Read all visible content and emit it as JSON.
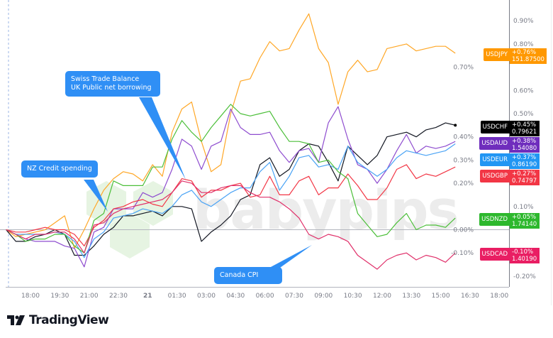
{
  "chart_data": {
    "type": "line",
    "ylim": [
      -0.25,
      0.97
    ],
    "y_unit": "%",
    "y_ticks": [
      "0.90%",
      "0.80%",
      "0.70%",
      "0.60%",
      "0.50%",
      "0.40%",
      "0.30%",
      "0.20%",
      "0.10%",
      "0.00%",
      "-0.10%",
      "-0.20%"
    ],
    "y_tick_values": [
      0.9,
      0.8,
      0.7,
      0.6,
      0.5,
      0.4,
      0.3,
      0.2,
      0.1,
      0.0,
      -0.1,
      -0.2
    ],
    "x_ticks": [
      "18:00",
      "19:30",
      "21:00",
      "22:30",
      "21",
      "01:30",
      "03:00",
      "04:30",
      "06:00",
      "07:30",
      "09:00",
      "10:30",
      "12:00",
      "13:30",
      "15:00",
      "16:30",
      "18:00"
    ],
    "x": [
      "16:45",
      "17:15",
      "17:45",
      "18:15",
      "18:45",
      "19:15",
      "19:45",
      "20:15",
      "20:45",
      "21:15",
      "21:45",
      "22:15",
      "22:45",
      "23:15",
      "23:45",
      "00:15",
      "00:45",
      "01:15",
      "01:45",
      "02:15",
      "02:45",
      "03:15",
      "03:45",
      "04:15",
      "04:45",
      "05:15",
      "05:45",
      "06:15",
      "06:45",
      "07:15",
      "07:45",
      "08:15",
      "08:45",
      "09:15",
      "09:45",
      "10:15",
      "10:45",
      "11:15",
      "11:45",
      "12:15",
      "12:45",
      "13:15",
      "13:45",
      "14:15",
      "14:45",
      "15:15",
      "15:45"
    ],
    "series": [
      {
        "name": "USDJPY",
        "change": "+0.76%",
        "price": "151.87500",
        "color": "#ff9800",
        "line": "#ffa726",
        "values": [
          0,
          -0.03,
          -0.02,
          -0.01,
          0,
          0.03,
          0.06,
          -0.08,
          0,
          0.09,
          0.17,
          0.22,
          0.25,
          0.24,
          0.21,
          0.28,
          0.23,
          0.42,
          0.52,
          0.55,
          0.38,
          0.25,
          0.28,
          0.5,
          0.64,
          0.65,
          0.74,
          0.81,
          0.77,
          0.78,
          0.86,
          0.93,
          0.78,
          0.72,
          0.54,
          0.68,
          0.73,
          0.68,
          0.69,
          0.78,
          0.79,
          0.8,
          0.77,
          0.78,
          0.79,
          0.79,
          0.76
        ]
      },
      {
        "name": "USDCHF",
        "change": "+0.45%",
        "price": "0.79621",
        "color": "#000000",
        "line": "#131722",
        "values": [
          0,
          -0.05,
          -0.05,
          -0.03,
          -0.02,
          0,
          -0.02,
          -0.11,
          -0.11,
          -0.07,
          -0.02,
          0.01,
          0.06,
          0.06,
          0.07,
          0.08,
          0.06,
          0.1,
          0.1,
          0.09,
          -0.05,
          -0.01,
          0.02,
          0.06,
          0.13,
          0.15,
          0.28,
          0.31,
          0.23,
          0.26,
          0.34,
          0.37,
          0.36,
          0.29,
          0.21,
          0.36,
          0.32,
          0.28,
          0.32,
          0.4,
          0.41,
          0.42,
          0.4,
          0.43,
          0.44,
          0.46,
          0.45
        ]
      },
      {
        "name": "USDAUD",
        "change": "+0.38%",
        "price": "1.54080",
        "color": "#6f2dbd",
        "line": "#8e4ccf",
        "values": [
          0,
          -0.02,
          -0.04,
          -0.05,
          -0.05,
          -0.05,
          -0.07,
          -0.08,
          -0.16,
          -0.01,
          0.01,
          0.09,
          0.09,
          0.09,
          0.16,
          0.14,
          0.16,
          0.26,
          0.39,
          0.36,
          0.26,
          0.36,
          0.38,
          0.52,
          0.44,
          0.41,
          0.41,
          0.42,
          0.34,
          0.29,
          0.34,
          0.35,
          0.29,
          0.46,
          0.53,
          0.39,
          0.28,
          0.26,
          0.2,
          0.26,
          0.34,
          0.41,
          0.33,
          0.36,
          0.35,
          0.36,
          0.38
        ]
      },
      {
        "name": "USDEUR",
        "change": "+0.37%",
        "price": "0.86190",
        "color": "#2196f3",
        "line": "#4aa3f5",
        "values": [
          0,
          -0.02,
          -0.02,
          -0.02,
          -0.02,
          -0.01,
          -0.02,
          -0.05,
          -0.12,
          -0.04,
          -0.01,
          0.05,
          0.06,
          0.07,
          0.09,
          0.08,
          0.07,
          0.1,
          0.15,
          0.17,
          0.12,
          0.1,
          0.13,
          0.16,
          0.18,
          0.18,
          0.25,
          0.29,
          0.17,
          0.23,
          0.31,
          0.32,
          0.27,
          0.28,
          0.26,
          0.36,
          0.29,
          0.26,
          0.23,
          0.26,
          0.31,
          0.34,
          0.33,
          0.32,
          0.33,
          0.34,
          0.37
        ]
      },
      {
        "name": "USDGBP",
        "change": "+0.27%",
        "price": "0.74797",
        "color": "#f23645",
        "line": "#f23645",
        "values": [
          0,
          -0.01,
          -0.01,
          0,
          0.01,
          0,
          0,
          -0.02,
          -0.07,
          0.01,
          0.04,
          0.09,
          0.1,
          0.12,
          0.13,
          0.11,
          0.1,
          0.16,
          0.22,
          0.21,
          0.14,
          0.17,
          0.17,
          0.19,
          0.2,
          0.14,
          0.15,
          0.23,
          0.15,
          0.15,
          0.21,
          0.23,
          0.15,
          0.18,
          0.18,
          0.24,
          0.19,
          0.13,
          0.13,
          0.18,
          0.26,
          0.28,
          0.22,
          0.24,
          0.23,
          0.25,
          0.27
        ]
      },
      {
        "name": "USDNZD",
        "change": "+0.05%",
        "price": "1.74140",
        "color": "#2db82d",
        "line": "#4cbf3a",
        "values": [
          0,
          -0.02,
          -0.05,
          -0.04,
          -0.04,
          -0.02,
          -0.02,
          -0.07,
          -0.1,
          0.04,
          0.07,
          0.21,
          0.19,
          0.19,
          0.19,
          0.27,
          0.27,
          0.39,
          0.47,
          0.42,
          0.38,
          0.44,
          0.49,
          0.54,
          0.5,
          0.49,
          0.5,
          0.51,
          0.44,
          0.38,
          0.38,
          0.37,
          0.29,
          0.3,
          0.25,
          0.22,
          0.07,
          0.02,
          -0.03,
          -0.02,
          0.03,
          0.07,
          0,
          0.02,
          0.02,
          0.01,
          0.05
        ]
      },
      {
        "name": "USDCAD",
        "change": "-0.10%",
        "price": "1.40190",
        "color": "#e91e63",
        "line": "#e0306a",
        "values": [
          0,
          -0.02,
          -0.04,
          -0.02,
          -0.02,
          -0.01,
          -0.01,
          -0.04,
          -0.1,
          0.02,
          0.03,
          0.07,
          0.09,
          0.1,
          0.11,
          0.12,
          0.13,
          0.16,
          0.21,
          0.2,
          0.16,
          0.16,
          0.18,
          0.19,
          0.19,
          0.16,
          0.14,
          0.14,
          0.12,
          0.09,
          0.05,
          -0.02,
          -0.04,
          -0.02,
          -0.03,
          -0.05,
          -0.11,
          -0.14,
          -0.17,
          -0.13,
          -0.11,
          -0.1,
          -0.13,
          -0.11,
          -0.12,
          -0.14,
          -0.1
        ]
      }
    ],
    "annotations": [
      {
        "lines": [
          "Swiss Trade Balance",
          "UK Public net borrowing"
        ],
        "time": "02:15"
      },
      {
        "lines": [
          "NZ Credit spending"
        ],
        "time": "21:15"
      },
      {
        "lines": [
          "Canada CPI"
        ],
        "time": "08:45"
      }
    ],
    "grid": false,
    "legend": "right-axis tags"
  },
  "watermark": "babypips",
  "brand": "TradingView",
  "callout_color": "#2f8ff5"
}
